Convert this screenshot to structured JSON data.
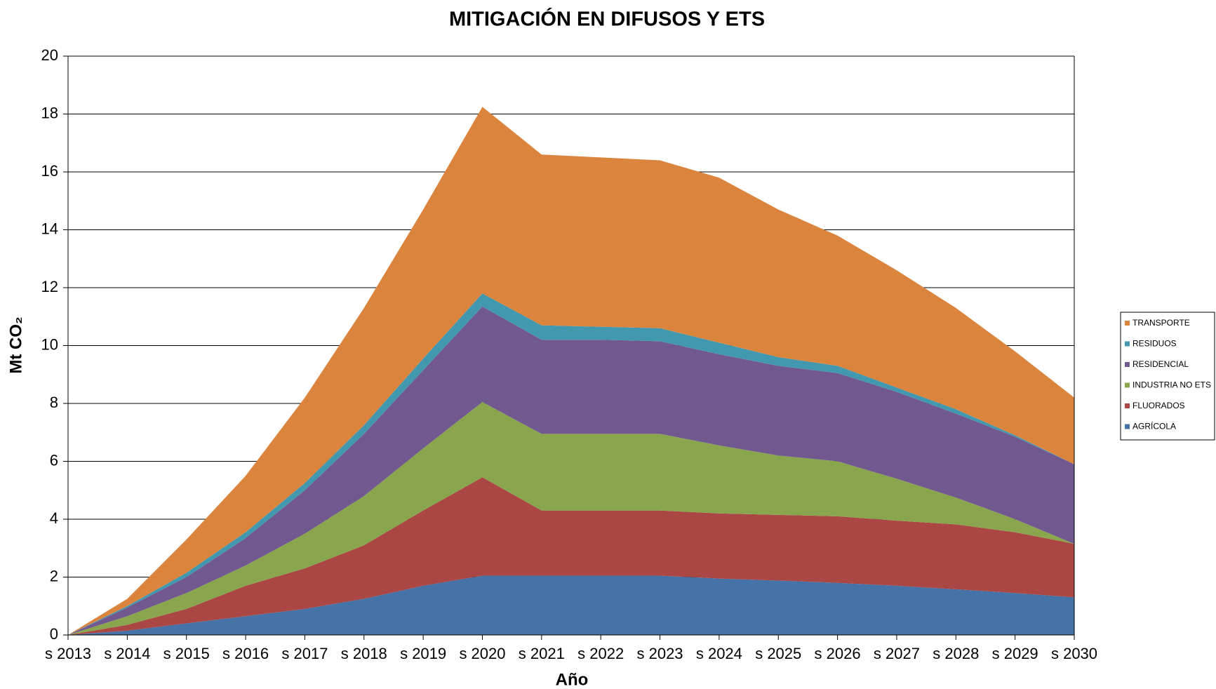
{
  "chart_data": {
    "type": "stacked_area",
    "title": "MITIGACIÓN EN DIFUSOS Y ETS",
    "x_label": "Año",
    "y_label": "Mt CO₂",
    "categories": [
      "s 2013",
      "s 2014",
      "s 2015",
      "s 2016",
      "s 2017",
      "s 2018",
      "s 2019",
      "s 2020",
      "s 2021",
      "s 2022",
      "s 2023",
      "s 2024",
      "s 2025",
      "s 2026",
      "s 2027",
      "s 2028",
      "s 2029",
      "s 2030"
    ],
    "series": [
      {
        "name": "AGRÍCOLA",
        "color": "#4572a7",
        "values": [
          0,
          0.15,
          0.4,
          0.65,
          0.9,
          1.25,
          1.7,
          2.05,
          2.05,
          2.05,
          2.05,
          1.95,
          1.88,
          1.8,
          1.7,
          1.58,
          1.45,
          1.3
        ]
      },
      {
        "name": "FLUORADOS",
        "color": "#aa4643",
        "values": [
          0,
          0.2,
          0.5,
          1.05,
          1.4,
          1.85,
          2.6,
          3.4,
          2.25,
          2.25,
          2.25,
          2.25,
          2.27,
          2.3,
          2.25,
          2.24,
          2.1,
          1.85
        ]
      },
      {
        "name": "INDUSTRIA NO ETS",
        "color": "#89a54e",
        "values": [
          0,
          0.3,
          0.55,
          0.7,
          1.2,
          1.7,
          2.15,
          2.6,
          2.65,
          2.65,
          2.65,
          2.35,
          2.05,
          1.9,
          1.45,
          0.93,
          0.45,
          0
        ]
      },
      {
        "name": "RESIDENCIAL",
        "color": "#71588f",
        "values": [
          0,
          0.3,
          0.55,
          0.95,
          1.5,
          2.15,
          2.7,
          3.3,
          3.25,
          3.25,
          3.2,
          3.15,
          3.1,
          3.05,
          3.0,
          2.9,
          2.85,
          2.75
        ]
      },
      {
        "name": "RESIDUOS",
        "color": "#4198af",
        "values": [
          0,
          0.05,
          0.15,
          0.2,
          0.25,
          0.3,
          0.4,
          0.45,
          0.5,
          0.45,
          0.45,
          0.4,
          0.3,
          0.25,
          0.15,
          0.15,
          0.05,
          0
        ]
      },
      {
        "name": "TRANSPORTE",
        "color": "#db843d",
        "values": [
          0,
          0.25,
          1.15,
          1.95,
          2.95,
          4.05,
          5.15,
          6.45,
          5.9,
          5.85,
          5.8,
          5.7,
          5.1,
          4.5,
          4.05,
          3.5,
          2.9,
          2.3
        ]
      }
    ],
    "ylim": [
      0,
      20
    ],
    "yticks": [
      0,
      2,
      4,
      6,
      8,
      10,
      12,
      14,
      16,
      18,
      20
    ],
    "grid": true,
    "legend": "right"
  }
}
